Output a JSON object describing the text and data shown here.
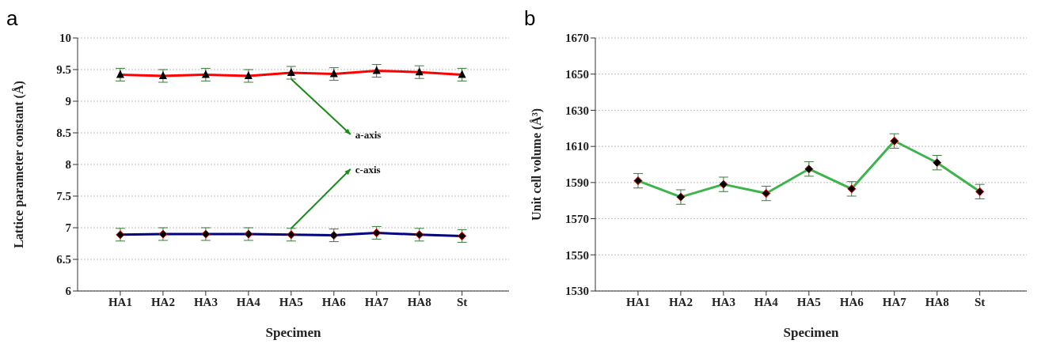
{
  "chart_data": [
    {
      "type": "line",
      "title": "a",
      "xlabel": "Specimen",
      "ylabel": "Lattice parameter constant (Å)",
      "categories": [
        "HA1",
        "HA2",
        "HA3",
        "HA4",
        "HA5",
        "HA6",
        "HA7",
        "HA8",
        "St"
      ],
      "series": [
        {
          "name": "a-axis",
          "color": "#ff0000",
          "marker": "triangle",
          "values": [
            9.42,
            9.4,
            9.42,
            9.4,
            9.45,
            9.43,
            9.48,
            9.46,
            9.42
          ],
          "errors": [
            0.1,
            0.1,
            0.1,
            0.1,
            0.1,
            0.1,
            0.1,
            0.1,
            0.1
          ]
        },
        {
          "name": "c-axis",
          "color": "#000080",
          "marker": "diamond",
          "values": [
            6.89,
            6.9,
            6.9,
            6.9,
            6.89,
            6.88,
            6.92,
            6.89,
            6.87
          ],
          "errors": [
            0.1,
            0.1,
            0.1,
            0.1,
            0.1,
            0.1,
            0.1,
            0.1,
            0.1
          ]
        }
      ],
      "ylim": [
        6,
        10
      ],
      "yticks": [
        6,
        6.5,
        7,
        7.5,
        8,
        8.5,
        9,
        9.5,
        10
      ],
      "grid": "y"
    },
    {
      "type": "line",
      "title": "b",
      "xlabel": "Specimen",
      "ylabel": "Unit cell volume (Å³)",
      "categories": [
        "HA1",
        "HA2",
        "HA3",
        "HA4",
        "HA5",
        "HA6",
        "HA7",
        "HA8",
        "St"
      ],
      "series": [
        {
          "color": "#3cb44b",
          "marker": "diamond",
          "values": [
            1591,
            1582,
            1589,
            1584,
            1597.5,
            1586.5,
            1613,
            1601,
            1585
          ],
          "errors": [
            4,
            4,
            4,
            4,
            4,
            4,
            4,
            4,
            4
          ]
        }
      ],
      "ylim": [
        1530,
        1670
      ],
      "yticks": [
        1530,
        1550,
        1570,
        1590,
        1610,
        1630,
        1650,
        1670
      ],
      "grid": "y"
    }
  ]
}
